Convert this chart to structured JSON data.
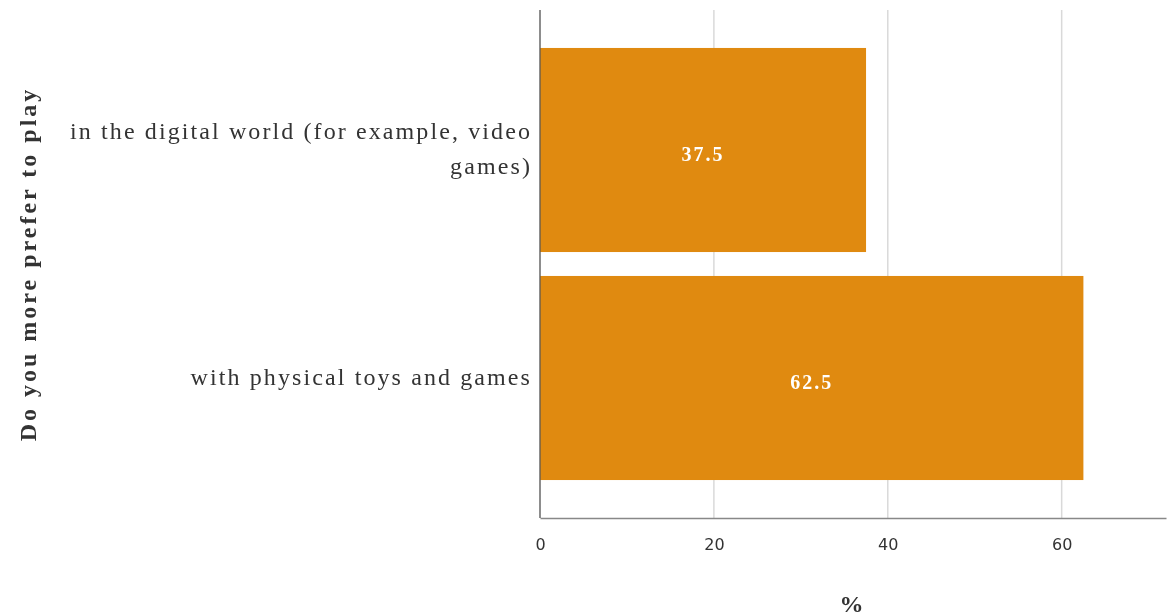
{
  "chart_data": {
    "type": "bar",
    "orientation": "horizontal",
    "categories": [
      "in the digital world (for example, video games)",
      "with physical toys and games"
    ],
    "values": [
      37.5,
      62.5
    ],
    "color": "#e08a10",
    "xlim": [
      0,
      72
    ],
    "xticks": [
      0,
      20,
      40,
      60
    ],
    "grid": "x",
    "data_labels": true,
    "xlabel": "%",
    "ylabel": "Do you more prefer to play"
  }
}
